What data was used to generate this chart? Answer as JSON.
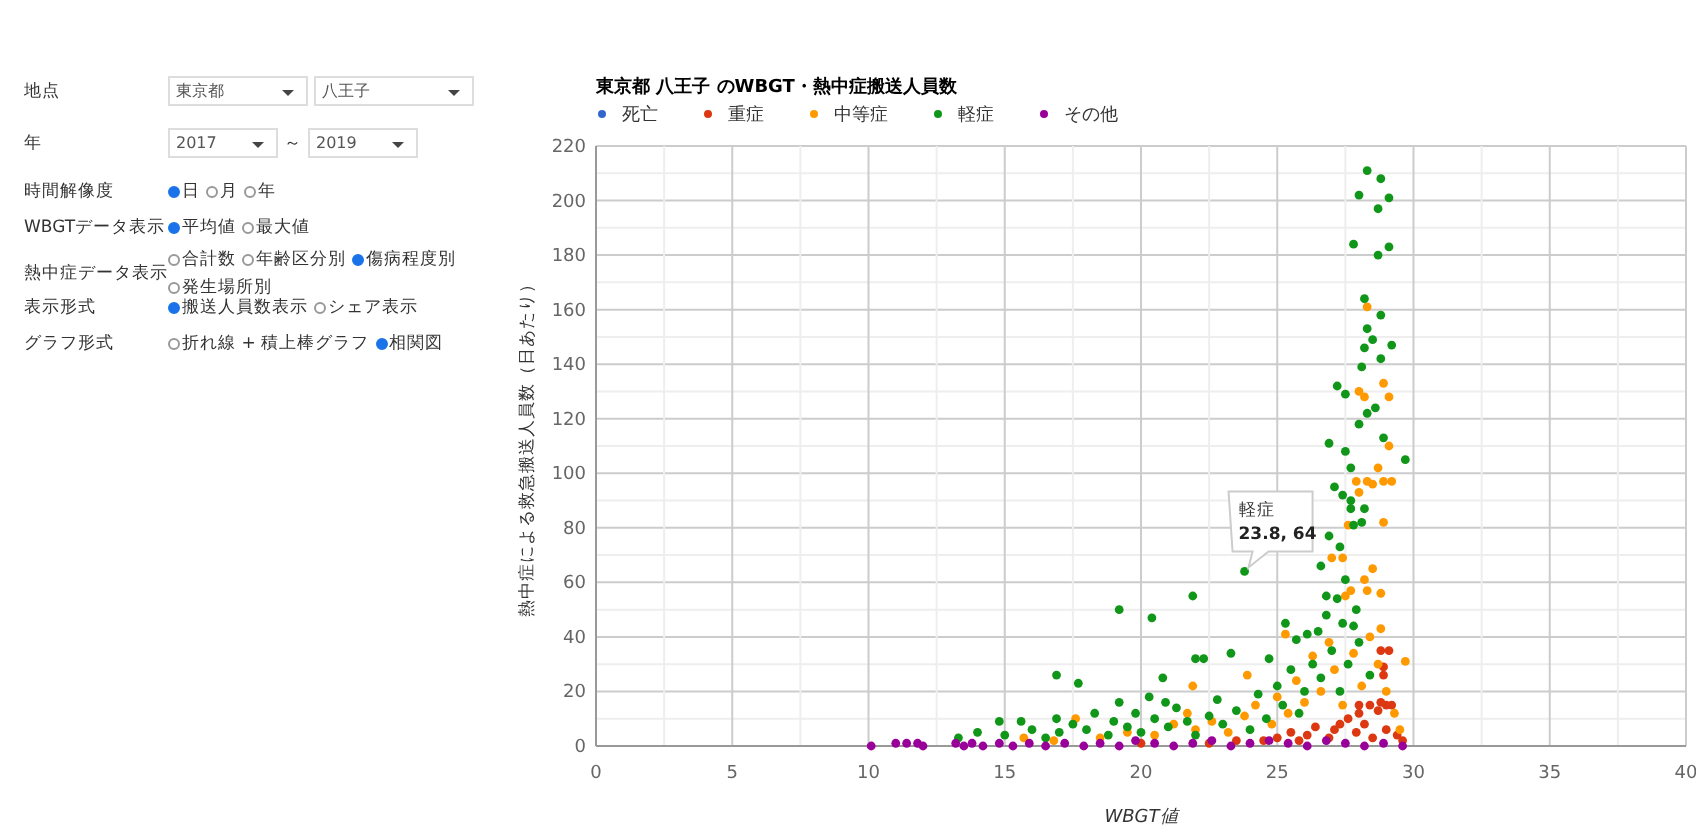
{
  "chart_data": {
    "type": "scatter",
    "title": "東京都 八王子 のWBGT・熱中症搬送人員数",
    "xlabel": "WBGT値",
    "ylabel": "熱中症による救急搬送人員数（日あたり）",
    "xlim": [
      0,
      40
    ],
    "xticks": [
      0,
      5,
      10,
      15,
      20,
      25,
      30,
      35,
      40
    ],
    "ylim": [
      0,
      220
    ],
    "yticks": [
      0,
      20,
      40,
      60,
      80,
      100,
      120,
      140,
      160,
      180,
      200,
      220
    ],
    "grid": true,
    "legend": "top left",
    "marker": "circle",
    "series": [
      {
        "name": "死亡",
        "color": "#3366cc"
      },
      {
        "name": "重症",
        "color": "#dc3912",
        "x": [
          28.8,
          29.1,
          28.9,
          28.9,
          28.0,
          28.4,
          28.8,
          29.2,
          29.0,
          28.7,
          28.0,
          27.1,
          26.1,
          27.3,
          24.5,
          25.0,
          25.5,
          25.8,
          26.4,
          26.9,
          27.6,
          27.9,
          28.2,
          28.5,
          29.0,
          29.4,
          29.6,
          22.5,
          23.5,
          20.0
        ],
        "values": [
          35,
          35,
          29,
          26,
          15,
          15,
          16,
          15,
          15,
          13,
          12,
          6,
          4,
          8,
          2,
          3,
          5,
          2,
          7,
          3,
          10,
          5,
          8,
          3,
          6,
          4,
          2,
          1,
          2,
          1
        ]
      },
      {
        "name": "中等症",
        "color": "#ff9900",
        "x": [
          28.3,
          28.0,
          28.2,
          28.9,
          29.1,
          29.1,
          28.7,
          27.9,
          28.3,
          28.5,
          28.9,
          29.2,
          28.0,
          27.6,
          28.9,
          27.0,
          27.4,
          28.5,
          28.2,
          27.7,
          28.3,
          28.8,
          27.5,
          25.3,
          28.8,
          21.9,
          23.9,
          21.7,
          17.6,
          29.7,
          18.5,
          19.5,
          20.5,
          21.2,
          22.0,
          22.6,
          23.2,
          23.8,
          24.2,
          24.8,
          25.0,
          25.4,
          25.7,
          26.0,
          26.3,
          26.6,
          26.9,
          27.1,
          27.4,
          27.8,
          28.1,
          28.4,
          28.7,
          29.0,
          29.3,
          29.5,
          15.7,
          16.8
        ],
        "values": [
          161,
          130,
          128,
          133,
          128,
          110,
          102,
          97,
          97,
          96,
          97,
          97,
          93,
          81,
          82,
          69,
          69,
          65,
          61,
          57,
          57,
          56,
          55,
          41,
          43,
          22,
          26,
          12,
          10,
          31,
          3,
          5,
          4,
          8,
          6,
          9,
          5,
          11,
          15,
          8,
          18,
          12,
          24,
          16,
          33,
          20,
          38,
          28,
          15,
          34,
          22,
          40,
          30,
          20,
          12,
          6,
          3,
          2
        ]
      },
      {
        "name": "軽症",
        "color": "#109618",
        "x": [
          28.3,
          28.8,
          28.0,
          29.1,
          28.7,
          27.8,
          28.7,
          29.1,
          28.2,
          28.8,
          28.3,
          28.5,
          28.2,
          29.2,
          28.8,
          28.1,
          27.2,
          27.5,
          28.6,
          28.3,
          28.0,
          28.9,
          26.9,
          27.5,
          29.7,
          27.7,
          27.1,
          27.4,
          27.7,
          27.7,
          28.2,
          27.8,
          28.1,
          26.9,
          27.3,
          26.6,
          23.8,
          27.5,
          26.8,
          27.2,
          25.3,
          27.4,
          27.8,
          25.7,
          26.1,
          26.5,
          23.3,
          24.7,
          22.0,
          19.2,
          20.4,
          21.9,
          16.9,
          17.7,
          20.8,
          22.3,
          20.3,
          19.2,
          20.9,
          14.8,
          15.6,
          16.9,
          13.3,
          14.0,
          15.0,
          16.0,
          16.5,
          17.0,
          17.5,
          18.0,
          18.3,
          18.8,
          19.0,
          19.5,
          19.8,
          20.0,
          20.5,
          21.0,
          21.3,
          21.7,
          22.0,
          22.5,
          22.8,
          23.0,
          23.5,
          24.0,
          24.3,
          24.6,
          25.0,
          25.2,
          25.5,
          25.8,
          26.0,
          26.3,
          26.6,
          27.0,
          27.3,
          27.6,
          28.0,
          28.4,
          27.9,
          26.8
        ],
        "values": [
          211,
          208,
          202,
          201,
          197,
          184,
          180,
          183,
          164,
          158,
          153,
          149,
          146,
          147,
          142,
          139,
          132,
          129,
          124,
          122,
          118,
          113,
          111,
          108,
          105,
          102,
          95,
          92,
          90,
          87,
          87,
          81,
          82,
          77,
          73,
          66,
          64,
          61,
          55,
          54,
          45,
          45,
          44,
          39,
          41,
          42,
          34,
          32,
          32,
          50,
          47,
          55,
          26,
          23,
          25,
          32,
          18,
          16,
          16,
          9,
          9,
          10,
          3,
          5,
          4,
          6,
          3,
          5,
          8,
          6,
          12,
          4,
          9,
          7,
          12,
          5,
          10,
          7,
          14,
          9,
          4,
          11,
          17,
          8,
          13,
          6,
          19,
          10,
          22,
          15,
          28,
          12,
          20,
          30,
          25,
          35,
          20,
          30,
          38,
          26,
          50,
          48
        ]
      },
      {
        "name": "その他",
        "color": "#990099",
        "x": [
          10.1,
          11.0,
          11.4,
          11.8,
          12.0,
          13.2,
          13.5,
          13.8,
          14.2,
          14.8,
          15.3,
          15.9,
          16.5,
          17.2,
          17.9,
          18.5,
          19.2,
          19.8,
          20.5,
          21.2,
          21.9,
          22.6,
          23.3,
          24.0,
          24.7,
          25.4,
          26.1,
          26.8,
          27.5,
          28.2,
          28.9,
          29.6
        ],
        "values": [
          0,
          1,
          1,
          1,
          0,
          1,
          0,
          1,
          0,
          1,
          0,
          1,
          0,
          1,
          0,
          1,
          0,
          2,
          1,
          0,
          1,
          2,
          0,
          1,
          2,
          1,
          0,
          2,
          1,
          0,
          1,
          0
        ]
      }
    ],
    "annotations": [
      "地点",
      "東京都",
      "八王子",
      "年",
      "2017",
      "～",
      "2019",
      "時間解像度",
      "日",
      "月",
      "年",
      "WBGTデータ表示",
      "平均値",
      "最大値",
      "熱中症データ表示",
      "合計数",
      "年齢区分別",
      "傷病程度別",
      "発生場所別",
      "表示形式",
      "搬送人員数表示",
      "シェア表示",
      "グラフ形式",
      "折れ線 + 積上棒グラフ",
      "相関図",
      {
        "text": "軽症 23.8, 64",
        "x": 23.8,
        "y": 64
      }
    ]
  }
}
